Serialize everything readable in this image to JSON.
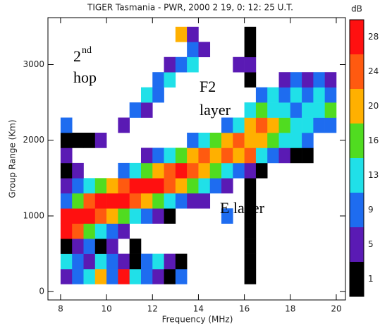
{
  "chart_data": {
    "type": "heatmap",
    "title": "TIGER Tasmania - PWR, 2000 2 19, 0: 12: 25 U.T.",
    "x_label": "Frequency (MHz)",
    "y_label": "Group Range (Km)",
    "xlim": [
      7.45,
      20.4
    ],
    "ylim": [
      -110,
      3620
    ],
    "xticks": [
      8,
      10,
      12,
      14,
      16,
      18,
      20
    ],
    "yticks": [
      0,
      1000,
      2000,
      3000
    ],
    "x_bins": [
      8,
      8.5,
      9,
      9.5,
      10,
      10.5,
      11,
      11.5,
      12,
      12.5,
      13,
      13.5,
      14,
      14.5,
      15,
      15.5,
      16,
      16.5,
      17,
      17.5,
      18,
      18.5,
      19,
      19.5,
      20
    ],
    "y_bins": [
      100,
      300,
      500,
      700,
      900,
      1100,
      1300,
      1500,
      1700,
      1900,
      2100,
      2300,
      2500,
      2700,
      2900,
      3100,
      3300,
      3500
    ],
    "colorbar": {
      "title": "dB",
      "levels": [
        1,
        5,
        9,
        13,
        16,
        20,
        24,
        28
      ],
      "colors": [
        "#000000",
        "#5a1ab4",
        "#1e6cf0",
        "#20e0e8",
        "#50dc20",
        "#ffb000",
        "#ff5a10",
        "#ff1010"
      ]
    },
    "annotations": [
      "2",
      "nd",
      "hop",
      "F2",
      "layer",
      "E layer"
    ],
    "z": [
      [
        5,
        9,
        13,
        20,
        9,
        28,
        13,
        9,
        5,
        1,
        9,
        null,
        null,
        null,
        null,
        null,
        1,
        null,
        null,
        null,
        null,
        null,
        null,
        null
      ],
      [
        13,
        9,
        5,
        13,
        9,
        5,
        1,
        9,
        13,
        5,
        1,
        null,
        null,
        null,
        null,
        null,
        1,
        null,
        null,
        null,
        null,
        null,
        null,
        null
      ],
      [
        1,
        5,
        9,
        1,
        5,
        null,
        1,
        null,
        null,
        null,
        null,
        null,
        null,
        null,
        null,
        null,
        1,
        null,
        null,
        null,
        null,
        null,
        null,
        null
      ],
      [
        28,
        24,
        16,
        13,
        9,
        5,
        null,
        null,
        null,
        null,
        null,
        null,
        null,
        null,
        null,
        null,
        1,
        null,
        null,
        null,
        null,
        null,
        null,
        null
      ],
      [
        28,
        28,
        28,
        24,
        20,
        16,
        13,
        9,
        5,
        1,
        null,
        null,
        null,
        null,
        9,
        null,
        1,
        null,
        null,
        null,
        null,
        null,
        null,
        null
      ],
      [
        9,
        16,
        24,
        28,
        28,
        28,
        24,
        20,
        16,
        13,
        9,
        5,
        5,
        null,
        null,
        null,
        1,
        null,
        null,
        null,
        null,
        null,
        null,
        null
      ],
      [
        5,
        9,
        13,
        16,
        20,
        24,
        28,
        28,
        28,
        24,
        20,
        16,
        13,
        9,
        5,
        null,
        1,
        null,
        null,
        null,
        null,
        null,
        null,
        null
      ],
      [
        1,
        5,
        null,
        null,
        null,
        9,
        13,
        16,
        20,
        24,
        28,
        24,
        20,
        16,
        13,
        9,
        5,
        1,
        null,
        null,
        null,
        null,
        null,
        null
      ],
      [
        5,
        null,
        null,
        null,
        null,
        null,
        null,
        5,
        9,
        13,
        16,
        20,
        24,
        20,
        24,
        20,
        24,
        13,
        9,
        5,
        1,
        1,
        null,
        null
      ],
      [
        1,
        1,
        1,
        5,
        null,
        null,
        null,
        null,
        null,
        null,
        null,
        9,
        13,
        16,
        20,
        24,
        20,
        20,
        16,
        13,
        13,
        9,
        null,
        null
      ],
      [
        9,
        null,
        null,
        null,
        null,
        5,
        null,
        null,
        null,
        null,
        null,
        null,
        null,
        null,
        9,
        13,
        20,
        24,
        20,
        16,
        13,
        13,
        9,
        9
      ],
      [
        null,
        null,
        null,
        null,
        null,
        null,
        9,
        5,
        null,
        null,
        null,
        null,
        null,
        null,
        null,
        null,
        13,
        16,
        13,
        13,
        9,
        13,
        13,
        16
      ],
      [
        null,
        null,
        null,
        null,
        null,
        null,
        null,
        13,
        9,
        null,
        null,
        null,
        null,
        null,
        null,
        null,
        null,
        9,
        13,
        9,
        13,
        9,
        13,
        9
      ],
      [
        null,
        null,
        null,
        null,
        null,
        null,
        null,
        null,
        9,
        13,
        null,
        null,
        null,
        null,
        null,
        null,
        1,
        null,
        null,
        5,
        9,
        5,
        9,
        5
      ],
      [
        null,
        null,
        null,
        null,
        null,
        null,
        null,
        null,
        null,
        5,
        9,
        13,
        null,
        null,
        null,
        5,
        5,
        null,
        null,
        null,
        null,
        null,
        null,
        null
      ],
      [
        null,
        null,
        null,
        null,
        null,
        null,
        null,
        null,
        null,
        null,
        null,
        9,
        5,
        null,
        null,
        null,
        1,
        null,
        null,
        null,
        null,
        null,
        null,
        null
      ],
      [
        null,
        null,
        null,
        null,
        null,
        null,
        null,
        null,
        null,
        null,
        20,
        5,
        null,
        null,
        null,
        null,
        1,
        null,
        null,
        null,
        null,
        null,
        null,
        null
      ]
    ]
  }
}
